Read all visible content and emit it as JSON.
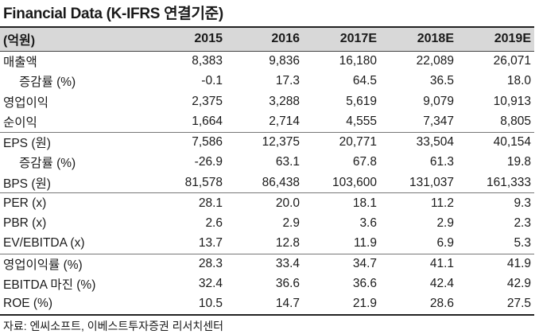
{
  "title": "Financial Data (K-IFRS 연결기준)",
  "table": {
    "header": {
      "label": "(억원)",
      "years": [
        "2015",
        "2016",
        "2017E",
        "2018E",
        "2019E"
      ]
    },
    "rows": [
      {
        "label": "매출액",
        "values": [
          "8,383",
          "9,836",
          "16,180",
          "22,089",
          "26,071"
        ]
      },
      {
        "label": "증감률 (%)",
        "values": [
          "-0.1",
          "17.3",
          "64.5",
          "36.5",
          "18.0"
        ]
      },
      {
        "label": "영업이익",
        "values": [
          "2,375",
          "3,288",
          "5,619",
          "9,079",
          "10,913"
        ]
      },
      {
        "label": "순이익",
        "values": [
          "1,664",
          "2,714",
          "4,555",
          "7,347",
          "8,805"
        ]
      },
      {
        "label": "EPS (원)",
        "values": [
          "7,586",
          "12,375",
          "20,771",
          "33,504",
          "40,154"
        ]
      },
      {
        "label": "증감률 (%)",
        "values": [
          "-26.9",
          "63.1",
          "67.8",
          "61.3",
          "19.8"
        ]
      },
      {
        "label": "BPS (원)",
        "values": [
          "81,578",
          "86,438",
          "103,600",
          "131,037",
          "161,333"
        ]
      },
      {
        "label": "PER (x)",
        "values": [
          "28.1",
          "20.0",
          "18.1",
          "11.2",
          "9.3"
        ]
      },
      {
        "label": "PBR (x)",
        "values": [
          "2.6",
          "2.9",
          "3.6",
          "2.9",
          "2.3"
        ]
      },
      {
        "label": "EV/EBITDA (x)",
        "values": [
          "13.7",
          "12.8",
          "11.9",
          "6.9",
          "5.3"
        ]
      },
      {
        "label": "영업이익률 (%)",
        "values": [
          "28.3",
          "33.4",
          "34.7",
          "41.1",
          "41.9"
        ]
      },
      {
        "label": "EBITDA 마진 (%)",
        "values": [
          "32.4",
          "36.6",
          "36.6",
          "42.4",
          "42.9"
        ]
      },
      {
        "label": "ROE (%)",
        "values": [
          "10.5",
          "14.7",
          "21.9",
          "28.6",
          "27.5"
        ]
      }
    ]
  },
  "source": "자료: 엔씨소프트, 이베스트투자증권 리서치센터"
}
